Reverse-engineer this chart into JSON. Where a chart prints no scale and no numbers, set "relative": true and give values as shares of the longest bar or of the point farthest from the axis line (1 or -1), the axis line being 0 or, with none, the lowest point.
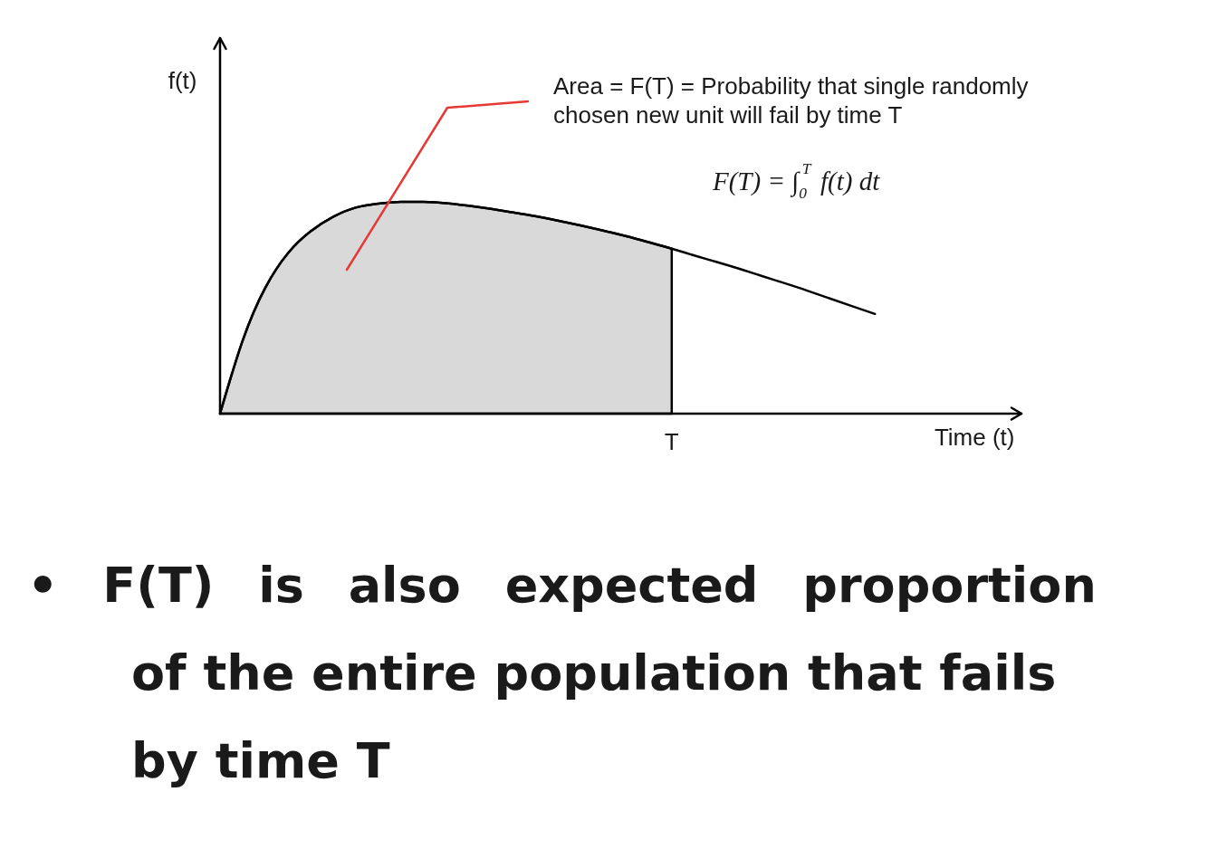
{
  "chart_data": {
    "type": "line",
    "relative": true,
    "xlabel": "Time (t)",
    "ylabel": "f(t)",
    "categories": [
      null,
      null,
      null,
      null,
      null,
      null,
      null,
      null,
      null,
      null,
      null,
      null,
      null,
      null,
      null,
      null,
      null,
      null,
      null,
      null,
      null,
      null,
      null,
      null,
      null,
      null,
      null,
      null,
      null,
      null
    ],
    "series": [
      {
        "type": "area",
        "color": "#d9d9d9",
        "values": [
          0,
          0.345,
          0.594,
          0.757,
          0.86,
          0.929,
          0.973,
          0.992,
          1,
          1,
          0.994,
          0.982,
          0.967,
          0.95,
          0.932,
          0.911,
          0.888,
          0.864,
          0.838,
          0.809,
          0.779,
          null,
          null,
          null,
          null,
          null,
          null,
          null,
          null,
          null
        ]
      },
      {
        "type": "line",
        "color": "#000000",
        "values": [
          0,
          0.345,
          0.594,
          0.757,
          0.86,
          0.929,
          0.973,
          0.992,
          1,
          1,
          0.994,
          0.982,
          0.967,
          0.95,
          0.932,
          0.911,
          0.888,
          0.864,
          0.838,
          0.809,
          0.779,
          0.747,
          0.716,
          0.684,
          0.65,
          0.616,
          0.581,
          0.544,
          0.507,
          0.471
        ]
      }
    ],
    "annotations": [
      "Area = F(T) = Probability that single randomly chosen new unit will fail by time T",
      "F(T) = ∫$_{0}$$^{T}$ f(t) dt",
      {
        "text": "T",
        "y": 0
      },
      "• F(T) is also expected proportion of the entire population that fails by time T"
    ]
  }
}
